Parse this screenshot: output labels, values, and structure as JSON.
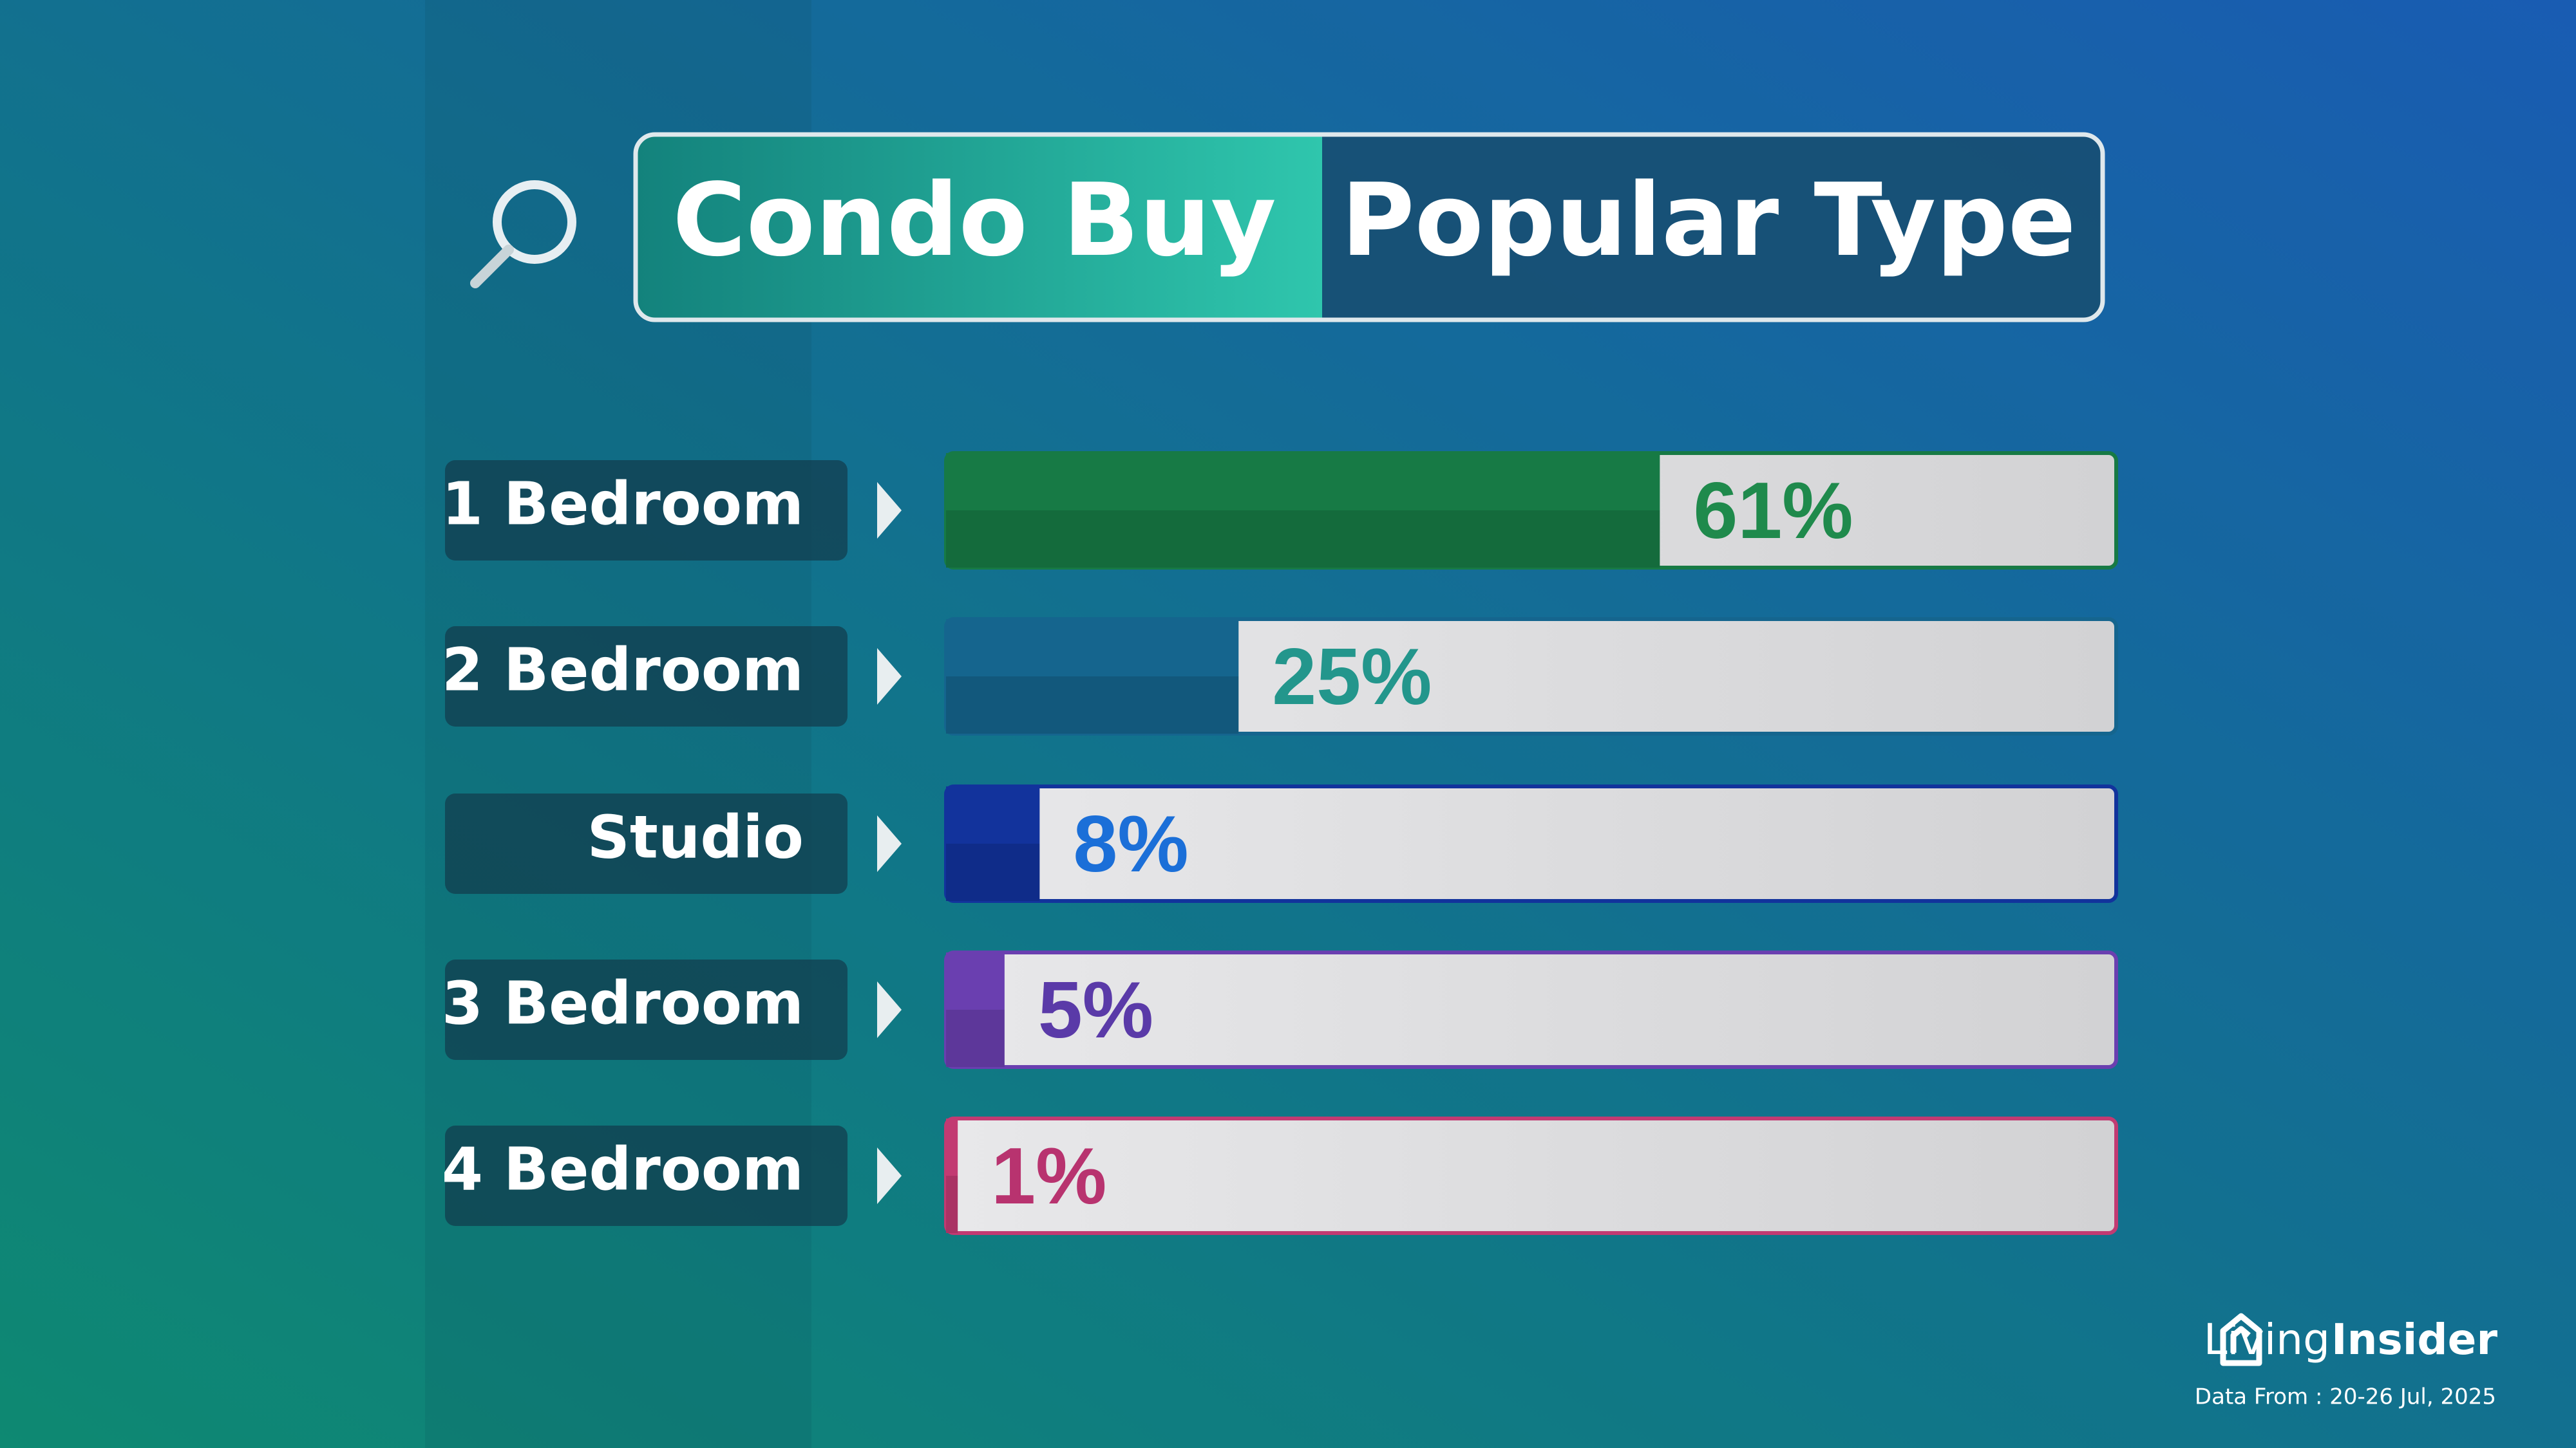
{
  "chart_data": {
    "type": "hbar",
    "title": "Condo Buy",
    "subtitle": "Popular Type",
    "categories": [
      "1 Bedroom",
      "2 Bedroom",
      "Studio",
      "3 Bedroom",
      "4 Bedroom"
    ],
    "values": [
      61,
      25,
      8,
      5,
      1
    ],
    "value_labels": [
      "61%",
      "25%",
      "8%",
      "5%",
      "1%"
    ],
    "colors": [
      "#177a45",
      "#15658e",
      "#12339c",
      "#6a3fb0",
      "#c23a72"
    ],
    "label_colors": [
      "#1f8a4c",
      "#23968c",
      "#1b6fd8",
      "#5a3aa8",
      "#b8336f"
    ],
    "xlim": [
      0,
      100
    ]
  },
  "footer": {
    "logo_light": "Living",
    "logo_bold": "Insider",
    "note": "Data From : 20-26 Jul, 2025"
  }
}
